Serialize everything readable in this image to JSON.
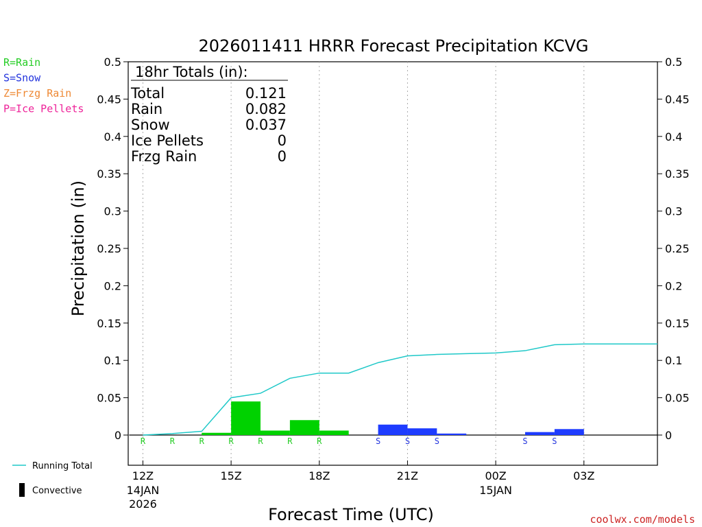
{
  "chart_data": {
    "type": "bar",
    "title": "2026011411 HRRR Forecast Precipitation KCVG",
    "xlabel": "Forecast Time (UTC)",
    "ylabel": "Precipitation (in)",
    "ylim": [
      -0.04,
      0.5
    ],
    "yticks": [
      "0.5",
      "0.45",
      "0.4",
      "0.35",
      "0.3",
      "0.25",
      "0.2",
      "0.15",
      "0.1",
      "0.05",
      "0"
    ],
    "ytick_values": [
      0.5,
      0.45,
      0.4,
      0.35,
      0.3,
      0.25,
      0.2,
      0.15,
      0.1,
      0.05,
      0
    ],
    "xlim": [
      11.5,
      29.5
    ],
    "xticks": [
      {
        "x": 12,
        "label": "12Z",
        "sub1": "14JAN",
        "sub2": "2026"
      },
      {
        "x": 15,
        "label": "15Z",
        "sub1": "",
        "sub2": ""
      },
      {
        "x": 18,
        "label": "18Z",
        "sub1": "",
        "sub2": ""
      },
      {
        "x": 21,
        "label": "21Z",
        "sub1": "",
        "sub2": ""
      },
      {
        "x": 24,
        "label": "00Z",
        "sub1": "15JAN",
        "sub2": ""
      },
      {
        "x": 27,
        "label": "03Z",
        "sub1": "",
        "sub2": ""
      }
    ],
    "grid": "vertical dotted at tick hours",
    "bars": [
      {
        "hour": 12,
        "value": 0.0,
        "type": "rain",
        "letter": "R"
      },
      {
        "hour": 13,
        "value": 0.0,
        "type": "rain",
        "letter": "R"
      },
      {
        "hour": 14,
        "value": 0.003,
        "type": "rain",
        "letter": "R"
      },
      {
        "hour": 15,
        "value": 0.045,
        "type": "rain",
        "letter": "R"
      },
      {
        "hour": 16,
        "value": 0.006,
        "type": "rain",
        "letter": "R"
      },
      {
        "hour": 17,
        "value": 0.02,
        "type": "rain",
        "letter": "R"
      },
      {
        "hour": 18,
        "value": 0.006,
        "type": "rain",
        "letter": "R"
      },
      {
        "hour": 19,
        "value": 0.0,
        "type": "none",
        "letter": ""
      },
      {
        "hour": 20,
        "value": 0.014,
        "type": "snow",
        "letter": "S"
      },
      {
        "hour": 21,
        "value": 0.009,
        "type": "snow",
        "letter": "S"
      },
      {
        "hour": 22,
        "value": 0.002,
        "type": "snow",
        "letter": "S"
      },
      {
        "hour": 23,
        "value": 0.0,
        "type": "none",
        "letter": ""
      },
      {
        "hour": 24,
        "value": 0.0,
        "type": "none",
        "letter": ""
      },
      {
        "hour": 25,
        "value": 0.004,
        "type": "snow",
        "letter": "S"
      },
      {
        "hour": 26,
        "value": 0.008,
        "type": "snow",
        "letter": "S"
      },
      {
        "hour": 27,
        "value": 0.0,
        "type": "none",
        "letter": ""
      },
      {
        "hour": 28,
        "value": 0.0,
        "type": "none",
        "letter": ""
      },
      {
        "hour": 29,
        "value": 0.0,
        "type": "none",
        "letter": ""
      }
    ],
    "running_total": [
      {
        "x": 12,
        "y": 0.0
      },
      {
        "x": 13,
        "y": 0.002
      },
      {
        "x": 14,
        "y": 0.005
      },
      {
        "x": 15,
        "y": 0.05
      },
      {
        "x": 16,
        "y": 0.056
      },
      {
        "x": 17,
        "y": 0.076
      },
      {
        "x": 18,
        "y": 0.083
      },
      {
        "x": 19,
        "y": 0.083
      },
      {
        "x": 20,
        "y": 0.097
      },
      {
        "x": 21,
        "y": 0.106
      },
      {
        "x": 22,
        "y": 0.108
      },
      {
        "x": 23,
        "y": 0.109
      },
      {
        "x": 24,
        "y": 0.11
      },
      {
        "x": 25,
        "y": 0.113
      },
      {
        "x": 26,
        "y": 0.121
      },
      {
        "x": 27,
        "y": 0.122
      },
      {
        "x": 28,
        "y": 0.122
      },
      {
        "x": 29,
        "y": 0.122
      },
      {
        "x": 29.5,
        "y": 0.122
      }
    ],
    "totals": {
      "heading": "18hr Totals (in):",
      "rows": [
        {
          "label": "Total",
          "value": "0.121"
        },
        {
          "label": "Rain",
          "value": "0.082"
        },
        {
          "label": "Snow",
          "value": "0.037"
        },
        {
          "label": "Ice Pellets",
          "value": "0"
        },
        {
          "label": "Frzg Rain",
          "value": "0"
        }
      ]
    },
    "type_legend": [
      {
        "text": "R=Rain",
        "color": "#22cc22"
      },
      {
        "text": "S=Snow",
        "color": "#2233dd"
      },
      {
        "text": "Z=Frzg Rain",
        "color": "#ee8833"
      },
      {
        "text": "P=Ice Pellets",
        "color": "#ee2299"
      }
    ],
    "line_legend": [
      {
        "text": "Running Total",
        "kind": "line"
      },
      {
        "text": "Convective",
        "kind": "block"
      }
    ],
    "colors": {
      "rain": "#00d200",
      "snow": "#1e3cff",
      "running_total": "#1ec8c8",
      "axis": "#000000",
      "grid": "#aaaaaa",
      "rain_letter": "#22cc22",
      "snow_letter": "#2233dd"
    },
    "credit": "coolwx.com/models",
    "credit_color": "#cc2222"
  }
}
